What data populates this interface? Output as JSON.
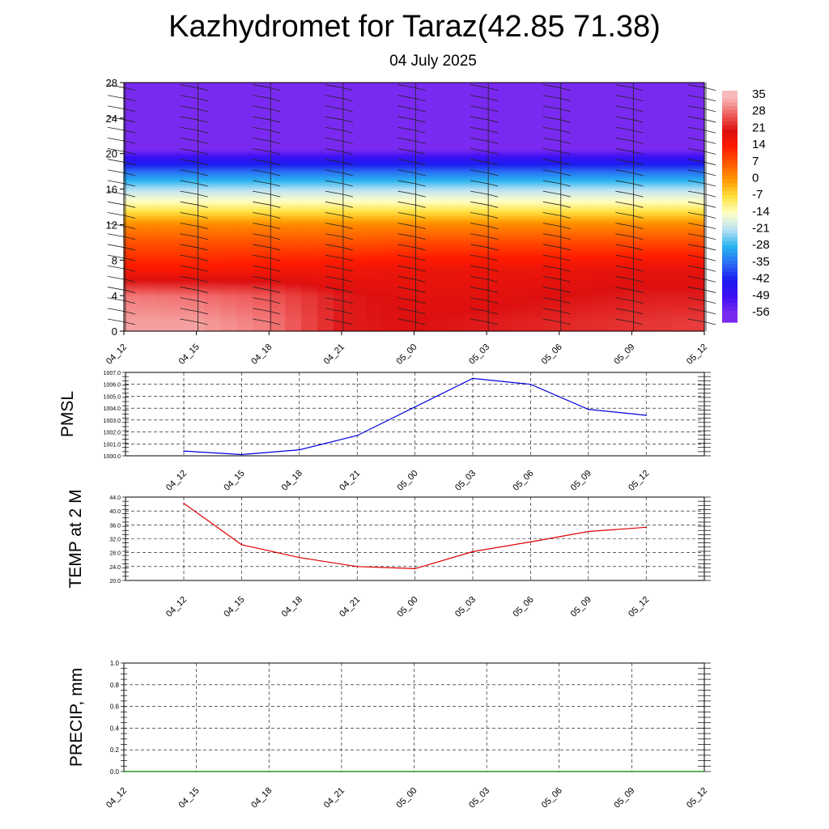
{
  "header": {
    "title": "Kazhydromet for Taraz(42.85 71.38)",
    "subtitle": "04 July 2025"
  },
  "chart_data": [
    {
      "type": "heatmap",
      "title": "",
      "xlabel": "",
      "ylabel": "",
      "x_ticks": [
        "04_12",
        "04_15",
        "04_18",
        "04_21",
        "05_00",
        "05_03",
        "05_06",
        "05_09",
        "05_12"
      ],
      "y_ticks": [
        "0",
        "4",
        "8",
        "12",
        "16",
        "20",
        "24",
        "28"
      ],
      "ylim": [
        0,
        28
      ],
      "colorbar_labels": [
        "35",
        "28",
        "21",
        "14",
        "7",
        "0",
        "-7",
        "-14",
        "-21",
        "-28",
        "-35",
        "-42",
        "-49",
        "-56"
      ],
      "colorbar_colors": [
        "#f7b9b9",
        "#f06060",
        "#dd1010",
        "#ff1c00",
        "#ff5a00",
        "#ff9a00",
        "#ffe240",
        "#ffffc8",
        "#b8e0f5",
        "#28b4f0",
        "#2a6ef5",
        "#1c1cf0",
        "#3a10f5",
        "#7a2af0"
      ],
      "temperature_by_height": [
        {
          "height": 1,
          "values": [
            33,
            33,
            30,
            22,
            21,
            22,
            23,
            24,
            25
          ]
        },
        {
          "height": 4,
          "values": [
            30,
            29,
            27,
            22,
            20,
            20,
            21,
            22,
            22
          ]
        },
        {
          "height": 7,
          "values": [
            15,
            15,
            16,
            17,
            18,
            18,
            18,
            19,
            19
          ]
        },
        {
          "height": 10,
          "values": [
            8,
            8,
            8,
            8,
            9,
            9,
            9,
            9,
            9
          ]
        },
        {
          "height": 12,
          "values": [
            2,
            2,
            2,
            2,
            2,
            2,
            2,
            2,
            2
          ]
        },
        {
          "height": 14,
          "values": [
            -10,
            -10,
            -10,
            -10,
            -10,
            -10,
            -10,
            -10,
            -10
          ]
        },
        {
          "height": 16,
          "values": [
            -21,
            -21,
            -21,
            -21,
            -21,
            -21,
            -21,
            -21,
            -21
          ]
        },
        {
          "height": 18,
          "values": [
            -35,
            -35,
            -35,
            -35,
            -35,
            -35,
            -35,
            -35,
            -35
          ]
        },
        {
          "height": 20.5,
          "values": [
            -56,
            -56,
            -56,
            -56,
            -56,
            -56,
            -56,
            -56,
            -56
          ]
        },
        {
          "height": 24,
          "values": [
            -60,
            -60,
            -60,
            -60,
            -60,
            -60,
            -60,
            -60,
            -60
          ]
        }
      ]
    },
    {
      "type": "line",
      "ylabel": "PMSL",
      "ylim": [
        1000,
        1007
      ],
      "y_ticks": [
        "1000.0",
        "1001.0",
        "1002.0",
        "1003.0",
        "1004.0",
        "1005.0",
        "1006.0",
        "1007.0"
      ],
      "x": [
        "04_12",
        "04_15",
        "04_18",
        "04_21",
        "05_00",
        "05_03",
        "05_06",
        "05_09",
        "05_12"
      ],
      "series": [
        {
          "color": "#0000e0",
          "values": [
            1000.4,
            1000.1,
            1000.5,
            1001.7,
            1004.1,
            1006.5,
            1006.0,
            1003.9,
            1003.4
          ]
        }
      ]
    },
    {
      "type": "line",
      "ylabel": "TEMP at 2 M",
      "ylim": [
        20,
        44
      ],
      "y_ticks": [
        "20.0",
        "24.0",
        "28.0",
        "32.0",
        "36.0",
        "40.0",
        "44.0"
      ],
      "x": [
        "04_12",
        "04_15",
        "04_18",
        "04_21",
        "05_00",
        "05_03",
        "05_06",
        "05_09",
        "05_12"
      ],
      "series": [
        {
          "color": "#e00000",
          "values": [
            42.2,
            30.3,
            26.6,
            24.0,
            23.4,
            28.3,
            31.1,
            34.1,
            35.3
          ]
        }
      ]
    },
    {
      "type": "line",
      "ylabel": "PRECIP, mm",
      "ylim": [
        0,
        1
      ],
      "y_ticks": [
        "0.0",
        "0.2",
        "0.4",
        "0.6",
        "0.8",
        "1.0"
      ],
      "x_ticks": [
        "04_12",
        "04_15",
        "04_18",
        "04_21",
        "05_00",
        "05_03",
        "05_06",
        "05_09",
        "05_12"
      ],
      "series": [
        {
          "color": "#008000",
          "values": [
            0,
            0,
            0,
            0,
            0,
            0,
            0,
            0,
            0
          ]
        }
      ]
    }
  ]
}
